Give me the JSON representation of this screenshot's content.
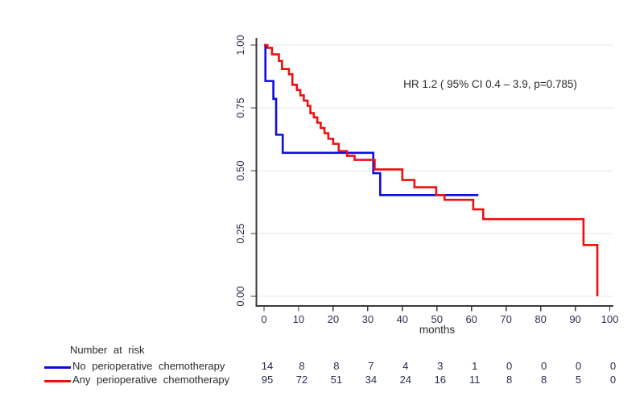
{
  "figure": {
    "background": "#ffffff"
  },
  "chart_data": {
    "type": "line",
    "subtype": "kaplan-meier-step",
    "title": "",
    "xlabel": "months",
    "ylabel": "",
    "annotation": "HR 1.2 ( 95% CI 0.4 – 3.9, p=0.785)",
    "xlim": [
      0,
      100
    ],
    "ylim": [
      0,
      1
    ],
    "grid": true,
    "legend_position": "bottom-left-risk-table",
    "x_ticks": [
      0,
      10,
      20,
      30,
      40,
      50,
      60,
      70,
      80,
      90,
      100
    ],
    "y_tick_labels": [
      "0.00",
      "0.25",
      "0.50",
      "0.75",
      "1.00"
    ],
    "y_tick_values": [
      0,
      0.25,
      0.5,
      0.75,
      1
    ],
    "series": [
      {
        "name": "No perioperative chemotherapy",
        "color": "#0d0de0",
        "steps": [
          [
            0,
            1.0
          ],
          [
            0.4,
            0.857
          ],
          [
            2.7,
            0.786
          ],
          [
            3.5,
            0.643
          ],
          [
            5.4,
            0.571
          ],
          [
            31.6,
            0.49
          ],
          [
            33.6,
            0.403
          ],
          [
            62,
            0.403
          ]
        ]
      },
      {
        "name": "Any perioperative chemotherapy",
        "color": "#ee0f0f",
        "steps": [
          [
            0,
            1.0
          ],
          [
            1.0,
            0.989
          ],
          [
            2.3,
            0.963
          ],
          [
            4.3,
            0.937
          ],
          [
            5.2,
            0.905
          ],
          [
            7.2,
            0.884
          ],
          [
            8.2,
            0.842
          ],
          [
            9.5,
            0.821
          ],
          [
            10.5,
            0.8
          ],
          [
            11.5,
            0.779
          ],
          [
            12.6,
            0.758
          ],
          [
            13.4,
            0.729
          ],
          [
            14.4,
            0.712
          ],
          [
            15.4,
            0.691
          ],
          [
            16.4,
            0.67
          ],
          [
            17.5,
            0.649
          ],
          [
            18.6,
            0.627
          ],
          [
            20,
            0.607
          ],
          [
            21.6,
            0.578
          ],
          [
            24,
            0.559
          ],
          [
            26.2,
            0.543
          ],
          [
            32,
            0.505
          ],
          [
            40,
            0.463
          ],
          [
            43.5,
            0.434
          ],
          [
            49.8,
            0.403
          ],
          [
            52.2,
            0.384
          ],
          [
            60.5,
            0.346
          ],
          [
            63.4,
            0.307
          ],
          [
            92.4,
            0.204
          ],
          [
            96.4,
            0.0
          ]
        ]
      }
    ],
    "number_at_risk": {
      "title": "Number at risk",
      "times": [
        0,
        10,
        20,
        30,
        40,
        50,
        60,
        70,
        80,
        90,
        100
      ],
      "rows": [
        {
          "label": "No perioperative chemotherapy",
          "color": "#0d0de0",
          "counts": [
            14,
            8,
            8,
            7,
            4,
            3,
            1,
            0,
            0,
            0,
            0
          ]
        },
        {
          "label": "Any perioperative chemotherapy",
          "color": "#ee0f0f",
          "counts": [
            95,
            72,
            51,
            34,
            24,
            16,
            11,
            8,
            8,
            5,
            0
          ]
        }
      ]
    },
    "colors": {
      "grid": "#dfeaec",
      "axis": "#3b3b3b",
      "tick_text": "#2c3152",
      "text": "#2b2b2b"
    }
  }
}
